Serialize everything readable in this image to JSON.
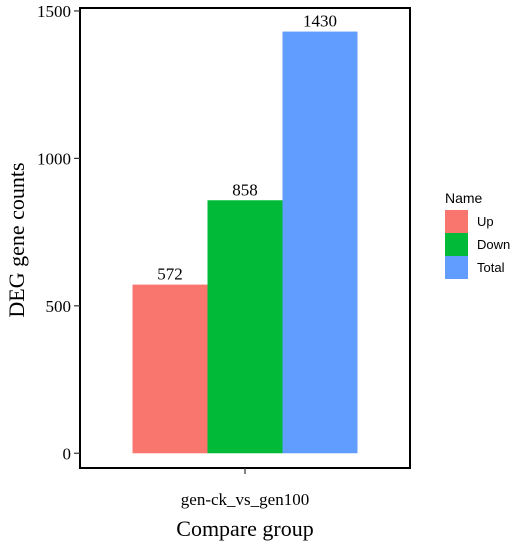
{
  "chart_data": {
    "type": "bar",
    "categories": [
      "gen-ck_vs_gen100"
    ],
    "series": [
      {
        "name": "Up",
        "values": [
          572
        ],
        "color": "#F8766D"
      },
      {
        "name": "Down",
        "values": [
          858
        ],
        "color": "#00BA38"
      },
      {
        "name": "Total",
        "values": [
          1430
        ],
        "color": "#619CFF"
      }
    ],
    "data_labels": [
      "572",
      "858",
      "1430"
    ],
    "xlabel": "Compare group",
    "ylabel": "DEG gene counts",
    "ylim": [
      -50,
      1510
    ],
    "yticks": [
      0,
      500,
      1000,
      1500
    ],
    "ytick_labels": [
      "0",
      "500",
      "1000",
      "1500"
    ],
    "legend": {
      "title": "Name",
      "placement": "right"
    },
    "grid": false
  }
}
